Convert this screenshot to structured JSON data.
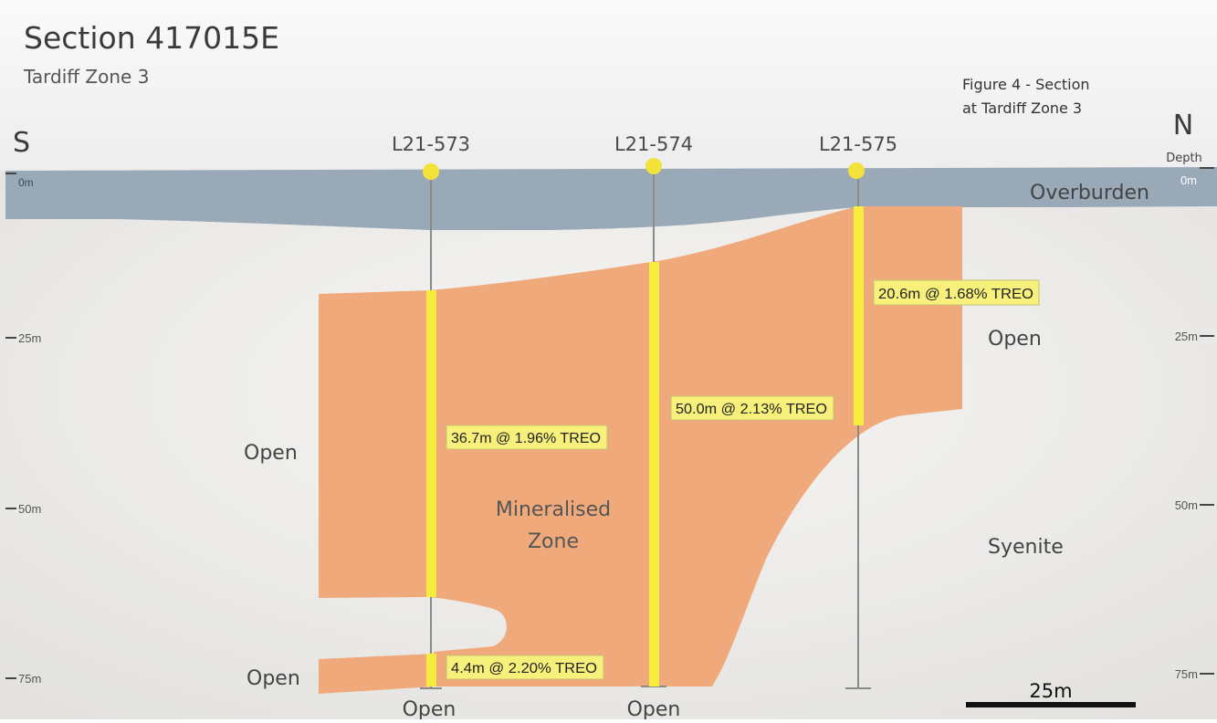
{
  "header": {
    "title": "Section 417015E",
    "subtitle": "Tardiff Zone 3",
    "figure_caption_line1": "Figure 4 - Section",
    "figure_caption_line2": "at Tardiff Zone 3"
  },
  "directions": {
    "left": "S",
    "right": "N"
  },
  "depth_axis": {
    "header": "Depth",
    "left_ticks": [
      "0m",
      "25m",
      "50m",
      "75m"
    ],
    "right_ticks": [
      "0m",
      "25m",
      "50m",
      "75m"
    ]
  },
  "units": {
    "overburden": "Overburden",
    "mineralised_line1": "Mineralised",
    "mineralised_line2": "Zone",
    "syenite": "Syenite",
    "open_left_mid": "Open",
    "open_left_bottom": "Open",
    "open_right": "Open",
    "open_below_573": "Open",
    "open_below_574": "Open"
  },
  "holes": [
    {
      "id": "L21-573",
      "intercepts": [
        "36.7m @ 1.96% TREO",
        "4.4m @ 2.20% TREO"
      ]
    },
    {
      "id": "L21-574",
      "intercepts": [
        "50.0m @ 2.13% TREO"
      ]
    },
    {
      "id": "L21-575",
      "intercepts": [
        "20.6m @ 1.68% TREO"
      ]
    }
  ],
  "scale_bar": {
    "label": "25m"
  },
  "colors": {
    "overburden": "#9aa9b8",
    "mineralised": "#f0a97a",
    "intercept": "#f5ec3c",
    "collar": "#f3e23a",
    "label_bg": "#f7f07a"
  }
}
